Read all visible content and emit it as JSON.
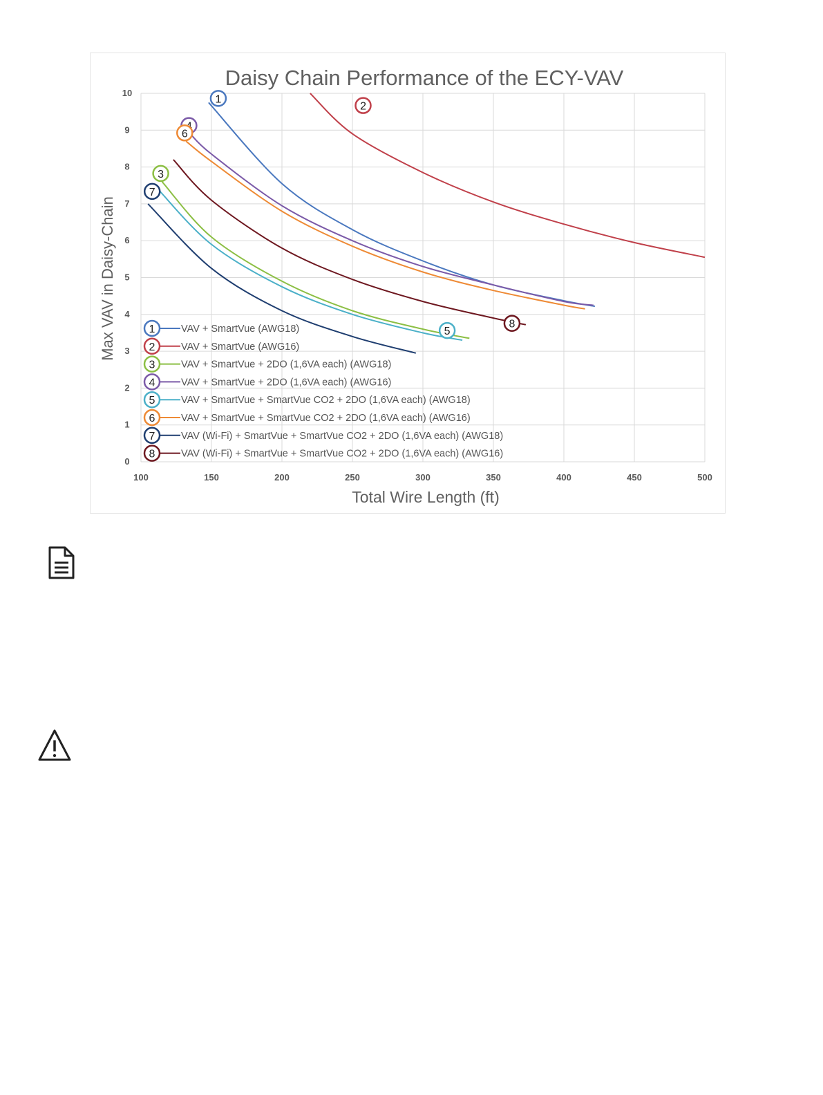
{
  "chart_data": {
    "type": "line",
    "title": "Daisy Chain Performance of the ECY-VAV",
    "xlabel": "Total Wire Length (ft)",
    "ylabel": "Max VAV in Daisy-Chain",
    "xlim": [
      100,
      500
    ],
    "ylim": [
      0,
      10
    ],
    "xticks": [
      "100",
      "150",
      "200",
      "250",
      "300",
      "350",
      "400",
      "450",
      "500"
    ],
    "yticks": [
      "0",
      "1",
      "2",
      "3",
      "4",
      "5",
      "6",
      "7",
      "8",
      "9",
      "10"
    ],
    "grid": true,
    "legend_position": "bottom-left",
    "series": [
      {
        "marker": "1",
        "name": "VAV + SmartVue (AWG18)",
        "color": "#4a78bf",
        "x": [
          148,
          200,
          250,
          300,
          350,
          400,
          422
        ],
        "y": [
          9.75,
          7.55,
          6.3,
          5.45,
          4.8,
          4.37,
          4.22
        ]
      },
      {
        "marker": "2",
        "name": "VAV + SmartVue (AWG16)",
        "color": "#c0404a",
        "x": [
          220,
          250,
          300,
          350,
          400,
          450,
          500
        ],
        "y": [
          10.0,
          8.9,
          7.85,
          7.05,
          6.45,
          5.95,
          5.55
        ]
      },
      {
        "marker": "3",
        "name": "VAV + SmartVue + 2DO (1,6VA each) (AWG18)",
        "color": "#8cbf44",
        "x": [
          115,
          150,
          200,
          250,
          300,
          333
        ],
        "y": [
          7.6,
          6.1,
          4.9,
          4.1,
          3.6,
          3.35
        ]
      },
      {
        "marker": "4",
        "name": "VAV + SmartVue + 2DO (1,6VA each) (AWG16)",
        "color": "#7b5aa8",
        "x": [
          135,
          150,
          200,
          250,
          300,
          350,
          400,
          421
        ],
        "y": [
          8.9,
          8.35,
          6.95,
          6.0,
          5.3,
          4.8,
          4.35,
          4.25
        ]
      },
      {
        "marker": "5",
        "name": "VAV + SmartVue + SmartVue CO2 + 2DO (1,6VA each) (AWG18)",
        "color": "#4bb0c8",
        "x": [
          112,
          150,
          200,
          250,
          300,
          328
        ],
        "y": [
          7.4,
          5.9,
          4.75,
          4.0,
          3.5,
          3.3
        ]
      },
      {
        "marker": "6",
        "name": "VAV + SmartVue + SmartVue CO2 + 2DO (1,6VA each) (AWG16)",
        "color": "#ee8a35",
        "x": [
          132,
          150,
          200,
          250,
          300,
          350,
          400,
          415
        ],
        "y": [
          8.7,
          8.15,
          6.8,
          5.85,
          5.15,
          4.65,
          4.25,
          4.15
        ]
      },
      {
        "marker": "7",
        "name": "VAV (Wi-Fi) + SmartVue + SmartVue CO2 + 2DO (1,6VA each) (AWG18)",
        "color": "#1f3e70",
        "x": [
          105,
          150,
          200,
          250,
          295
        ],
        "y": [
          7.0,
          5.25,
          4.1,
          3.4,
          2.95
        ]
      },
      {
        "marker": "8",
        "name": "VAV (Wi-Fi) + SmartVue + SmartVue CO2 + 2DO (1,6VA each) (AWG16)",
        "color": "#6e1820",
        "x": [
          123,
          150,
          200,
          250,
          300,
          350,
          373
        ],
        "y": [
          8.2,
          7.1,
          5.8,
          4.95,
          4.35,
          3.9,
          3.72
        ]
      }
    ]
  },
  "icons": {
    "note": "document-note-icon",
    "warning": "warning-triangle-icon"
  }
}
